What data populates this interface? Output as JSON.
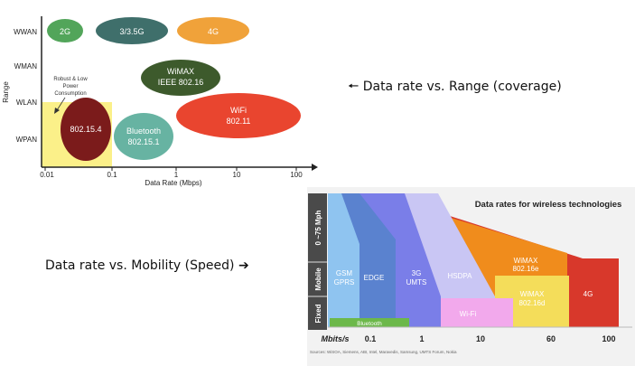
{
  "top_chart": {
    "y_axis_title": "Range",
    "x_axis_title": "Data Rate (Mbps)",
    "y_ticks": [
      "WWAN",
      "WMAN",
      "WLAN",
      "WPAN"
    ],
    "x_ticks": [
      "0.01",
      "0.1",
      "1",
      "10",
      "100"
    ],
    "annotation": [
      "Robust & Low",
      "Power",
      "Consumption"
    ],
    "bubbles": [
      {
        "label": [
          "2G"
        ],
        "color": "#52a55a"
      },
      {
        "label": [
          "3/3.5G"
        ],
        "color": "#3f6f6b"
      },
      {
        "label": [
          "4G"
        ],
        "color": "#f0a23a"
      },
      {
        "label": [
          "WiMAX",
          "IEEE 802.16"
        ],
        "color": "#3d5a2c"
      },
      {
        "label": [
          "WiFi",
          "802.11"
        ],
        "color": "#e9452f"
      },
      {
        "label": [
          "802.15.4"
        ],
        "color": "#7b1b1b"
      },
      {
        "label": [
          "Bluetooth",
          "802.15.1"
        ],
        "color": "#67b3a2"
      }
    ],
    "highlight_color": "#fbf089"
  },
  "bottom_chart": {
    "title": "Data rates for wireless technologies",
    "y_bands": [
      "0 ~75 Mph",
      "Mobile",
      "Fixed"
    ],
    "x_axis_label": "Mbits/s",
    "x_ticks": [
      "0.1",
      "1",
      "10",
      "60",
      "100"
    ],
    "regions": [
      {
        "label": [
          "GSM",
          "GPRS"
        ],
        "color": "#8fc4f0"
      },
      {
        "label": [
          "EDGE"
        ],
        "color": "#5a82cf"
      },
      {
        "label": [
          "3G",
          "UMTS"
        ],
        "color": "#7a7ee8"
      },
      {
        "label": [
          "HSDPA"
        ],
        "color": "#c9c6f4"
      },
      {
        "label": [
          "WiMAX",
          "802.16e"
        ],
        "color": "#f08c1c"
      },
      {
        "label": [
          "WiMAX",
          "802.16d"
        ],
        "color": "#f4dd5a"
      },
      {
        "label": [
          "4G"
        ],
        "color": "#d8382b"
      },
      {
        "label": [
          "Wi-Fi"
        ],
        "color": "#f2a9ec"
      },
      {
        "label": [
          "Bluetooth"
        ],
        "color": "#6cb84a"
      }
    ],
    "sources": "Sources: WiSOA, Siemens, ABI, Intel, Maravedis, Samsung, UMTS Forum, Nokia"
  },
  "captions": {
    "range": "Data rate vs. Range (coverage)",
    "mobility": "Data rate vs. Mobility (Speed)"
  },
  "icons": {
    "arrow_left": "arrow-left-icon",
    "arrow_right": "arrow-right-icon"
  }
}
